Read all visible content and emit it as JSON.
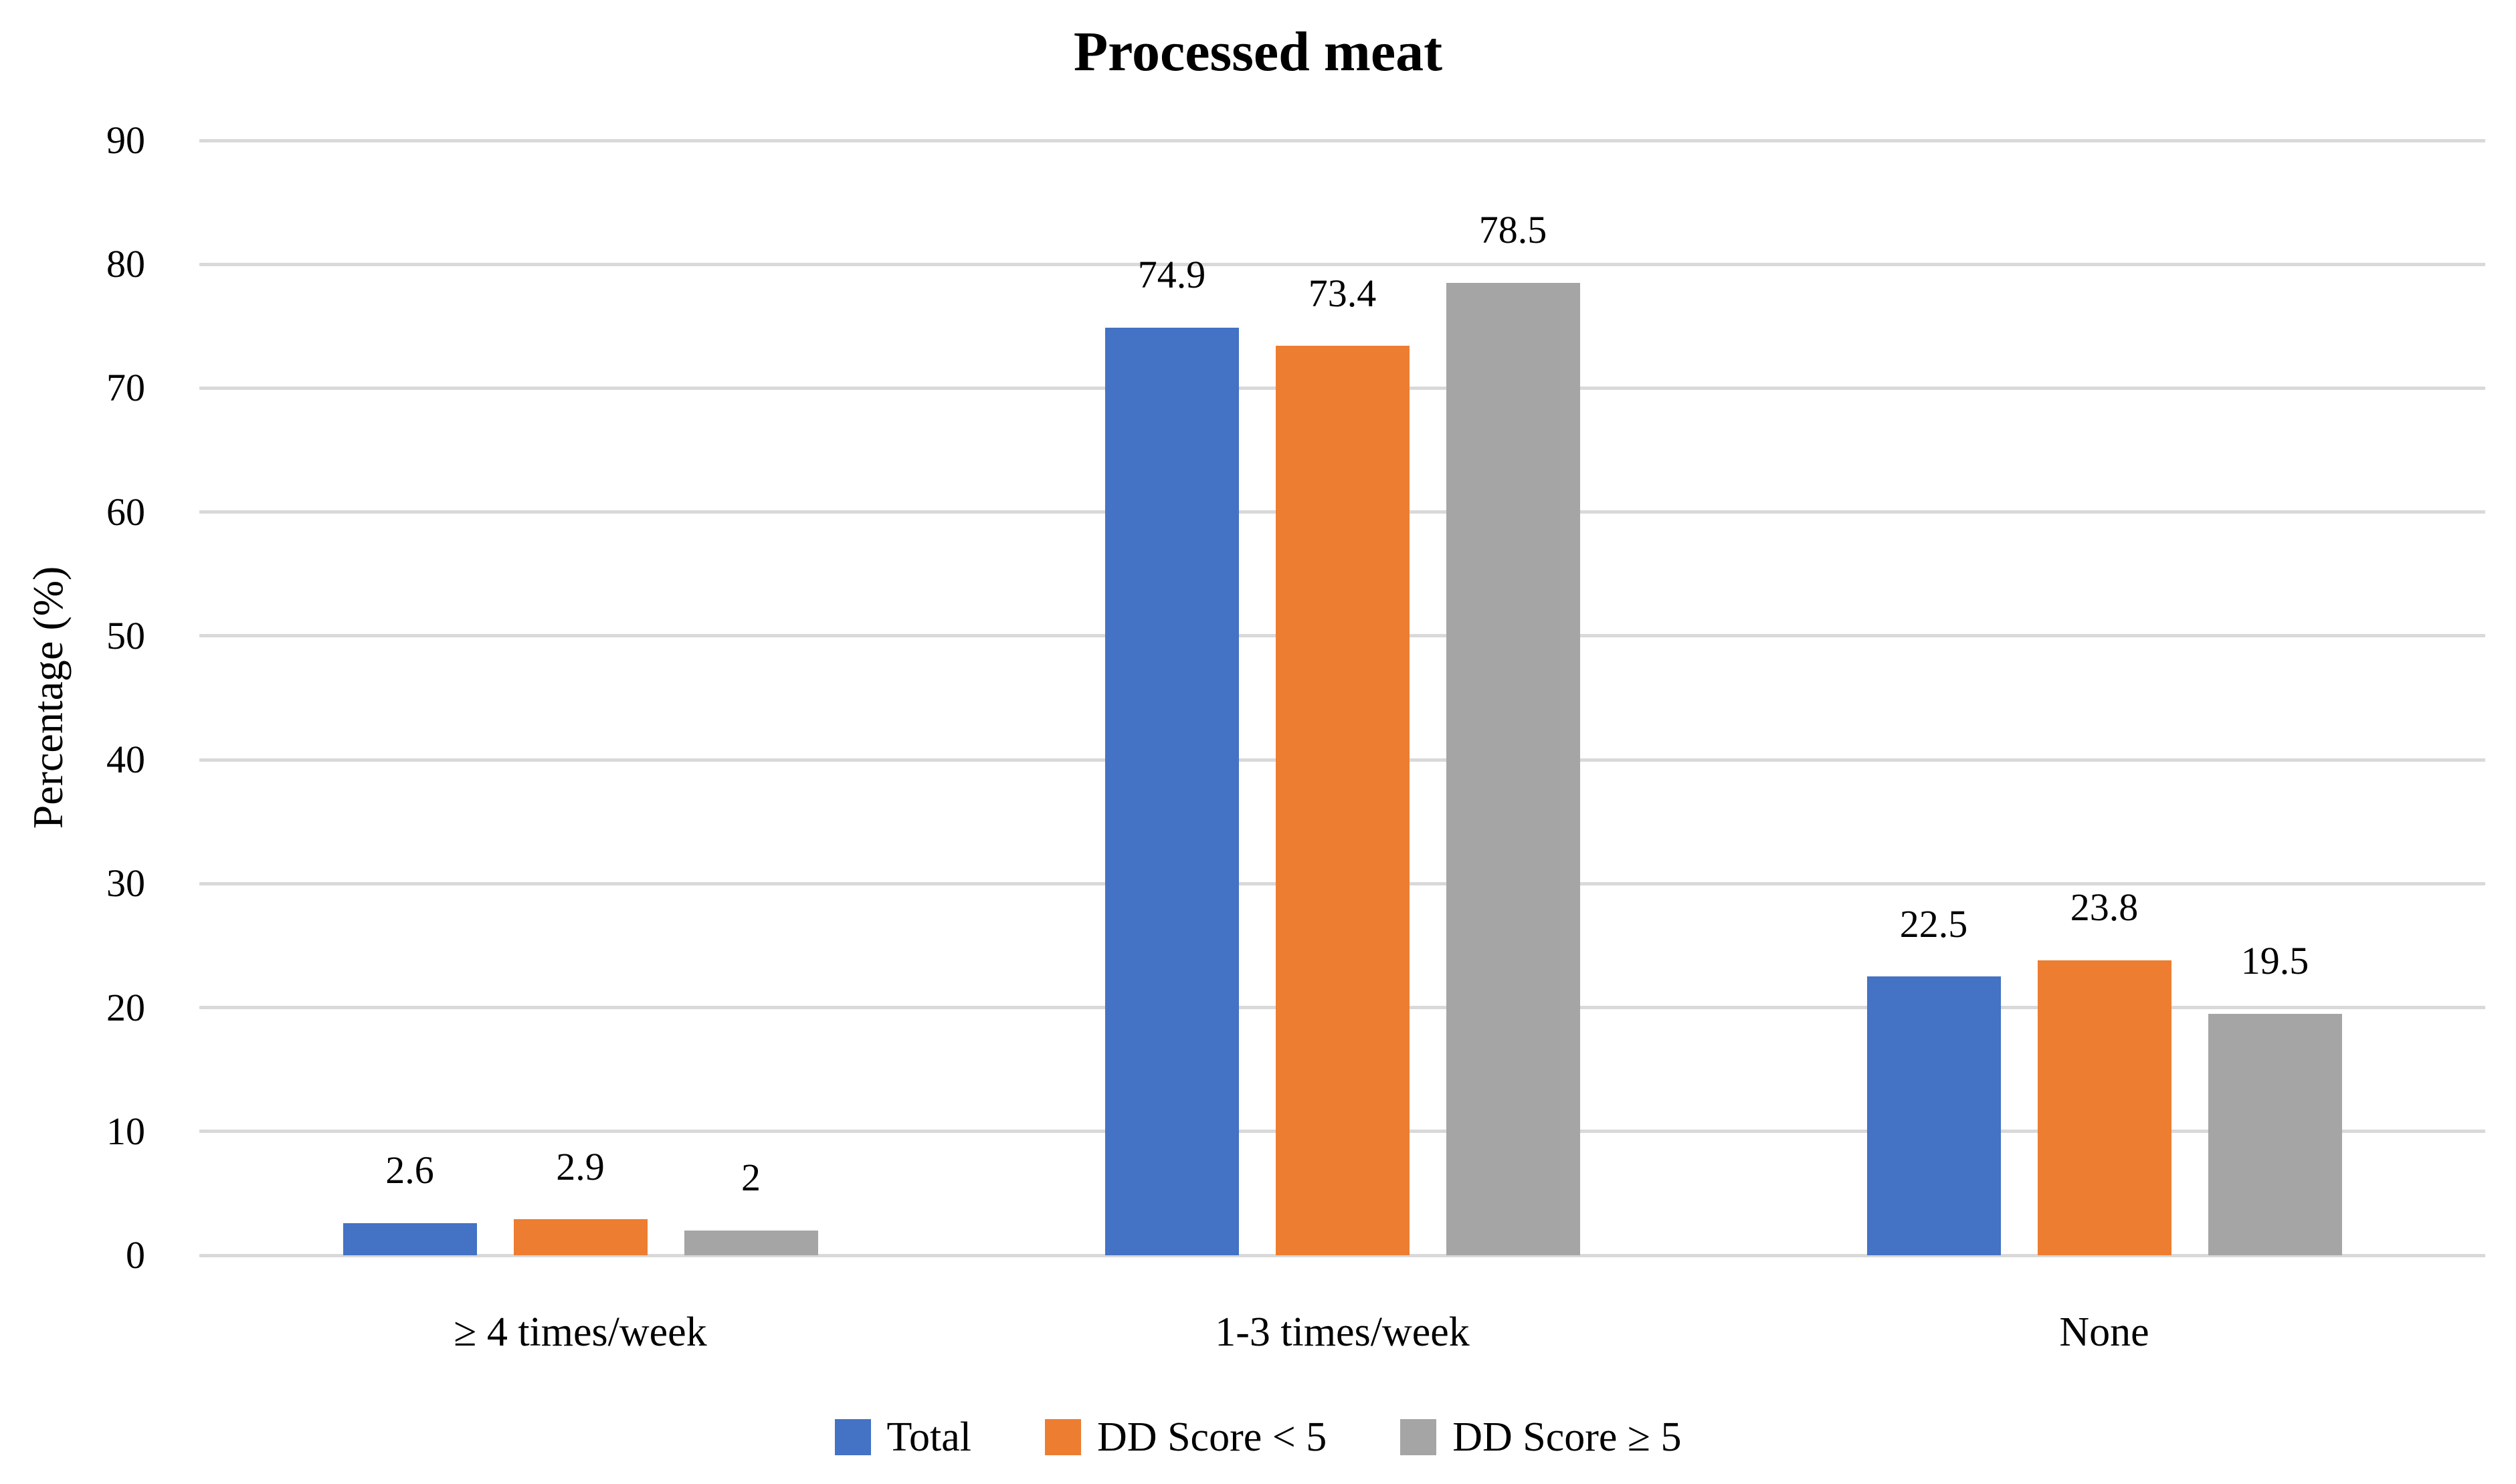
{
  "chart_data": {
    "type": "bar",
    "title": "Processed meat",
    "categories": [
      "≥ 4 times/week",
      "1-3 times/week",
      "None"
    ],
    "series": [
      {
        "name": "Total",
        "color": "#4472C4",
        "values": [
          2.6,
          74.9,
          22.5
        ],
        "value_labels": [
          "2.6",
          "74.9",
          "22.5"
        ]
      },
      {
        "name": "DD Score < 5",
        "color": "#ED7D31",
        "values": [
          2.9,
          73.4,
          23.8
        ],
        "value_labels": [
          "2.9",
          "73.4",
          "23.8"
        ]
      },
      {
        "name": "DD Score ≥ 5",
        "color": "#A5A5A5",
        "values": [
          2,
          78.5,
          19.5
        ],
        "value_labels": [
          "2",
          "78.5",
          "19.5"
        ]
      }
    ],
    "xlabel": "",
    "ylabel": "Percentage (%)",
    "ylim": [
      0,
      90
    ],
    "ytick_step": 10,
    "ytick_labels": [
      "0",
      "10",
      "20",
      "30",
      "40",
      "50",
      "60",
      "70",
      "80",
      "90"
    ],
    "grid": true,
    "gridline_color": "#D9D9D9",
    "legend_position": "bottom",
    "background_color": "#FFFFFF",
    "text_color": "#000000"
  }
}
